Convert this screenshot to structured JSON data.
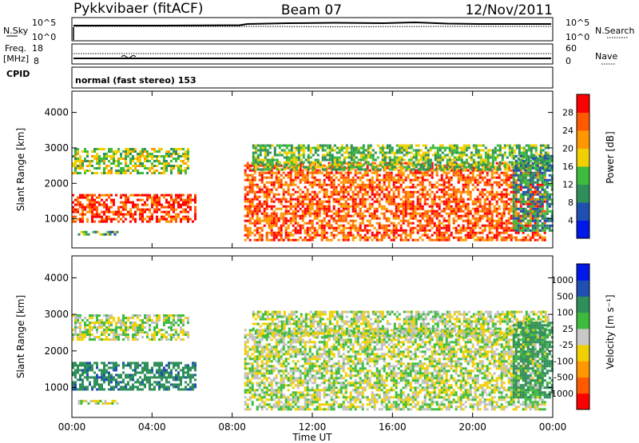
{
  "header": {
    "station": "Pykkvibaer (fitACF)",
    "beam": "Beam 07",
    "date": "12/Nov/2011"
  },
  "aux_panels": {
    "nsky_label": "N.Sky",
    "nsky_ticks": [
      "10^5",
      "10^0"
    ],
    "nsearch_label": "N.Search",
    "nsearch_ticks": [
      "10^5",
      "10^0"
    ],
    "freq_label_1": "Freq.",
    "freq_label_2": "[MHz]",
    "freq_ticks": [
      "18",
      "8"
    ],
    "nave_label": "Nave",
    "nave_ticks": [
      "60",
      "0"
    ],
    "cpid_label": "CPID",
    "cpid_text": "normal (fast stereo) 153"
  },
  "colors": {
    "power_scale": [
      "#0018e8",
      "#1f4fb0",
      "#2f8f5a",
      "#3dbb3d",
      "#f0d000",
      "#ff9800",
      "#ff5a00",
      "#ff0000"
    ],
    "velocity_scale": [
      "#ff0000",
      "#ff5a00",
      "#ff9800",
      "#f0d000",
      "#c8c8c8",
      "#3dbb3d",
      "#2f8f5a",
      "#1f4fb0",
      "#0018e8"
    ],
    "velocity_ground": "#c0c0c0"
  },
  "chart_data": [
    {
      "type": "heatmap",
      "name_printed": "Power",
      "ylabel": "Slant Range [km]",
      "ylim": [
        180,
        4600
      ],
      "yticks": [
        "4000",
        "3000",
        "2000",
        "1000"
      ],
      "xlim": [
        0,
        24
      ],
      "colorbar": {
        "label": "Power [dB]",
        "ticks": [
          "28",
          "24",
          "20",
          "16",
          "12",
          "8",
          "4"
        ],
        "range": [
          0,
          32
        ]
      },
      "echo_regions": [
        {
          "t": [
            0.0,
            6.2
          ],
          "r": [
            950,
            1700
          ],
          "v": 28
        },
        {
          "t": [
            0.0,
            5.8
          ],
          "r": [
            2300,
            3000
          ],
          "v": 16
        },
        {
          "t": [
            0.3,
            2.3
          ],
          "r": [
            560,
            660
          ],
          "v": 12
        },
        {
          "t": [
            8.6,
            23.6
          ],
          "r": [
            400,
            2600
          ],
          "v": 26
        },
        {
          "t": [
            9.0,
            23.8
          ],
          "r": [
            2400,
            3100
          ],
          "v": 14
        },
        {
          "t": [
            22.0,
            24.0
          ],
          "r": [
            700,
            2800
          ],
          "v": 10
        }
      ]
    },
    {
      "type": "heatmap",
      "name_printed": "Velocity",
      "ylabel": "Slant Range [km]",
      "ylim": [
        180,
        4600
      ],
      "yticks": [
        "4000",
        "3000",
        "2000",
        "1000"
      ],
      "xlim": [
        0,
        24
      ],
      "xticks": [
        "00:00",
        "04:00",
        "08:00",
        "12:00",
        "16:00",
        "20:00",
        "00:00"
      ],
      "xlabel": "Time UT",
      "colorbar": {
        "label": "Velocity [m s⁻¹]",
        "ticks": [
          "1000",
          "500",
          "100",
          "25",
          "-25",
          "-100",
          "-500",
          "-1000"
        ]
      },
      "echo_regions": [
        {
          "t": [
            0.0,
            6.2
          ],
          "r": [
            950,
            1700
          ],
          "v": 200
        },
        {
          "t": [
            0.0,
            5.8
          ],
          "r": [
            2300,
            3000
          ],
          "v": 0
        },
        {
          "t": [
            0.3,
            2.3
          ],
          "r": [
            560,
            660
          ],
          "v": 0
        },
        {
          "t": [
            8.6,
            23.6
          ],
          "r": [
            400,
            2600
          ],
          "v": 0
        },
        {
          "t": [
            9.0,
            23.8
          ],
          "r": [
            2400,
            3100
          ],
          "v": 0
        },
        {
          "t": [
            22.0,
            24.0
          ],
          "r": [
            700,
            2800
          ],
          "v": 150
        }
      ]
    }
  ]
}
